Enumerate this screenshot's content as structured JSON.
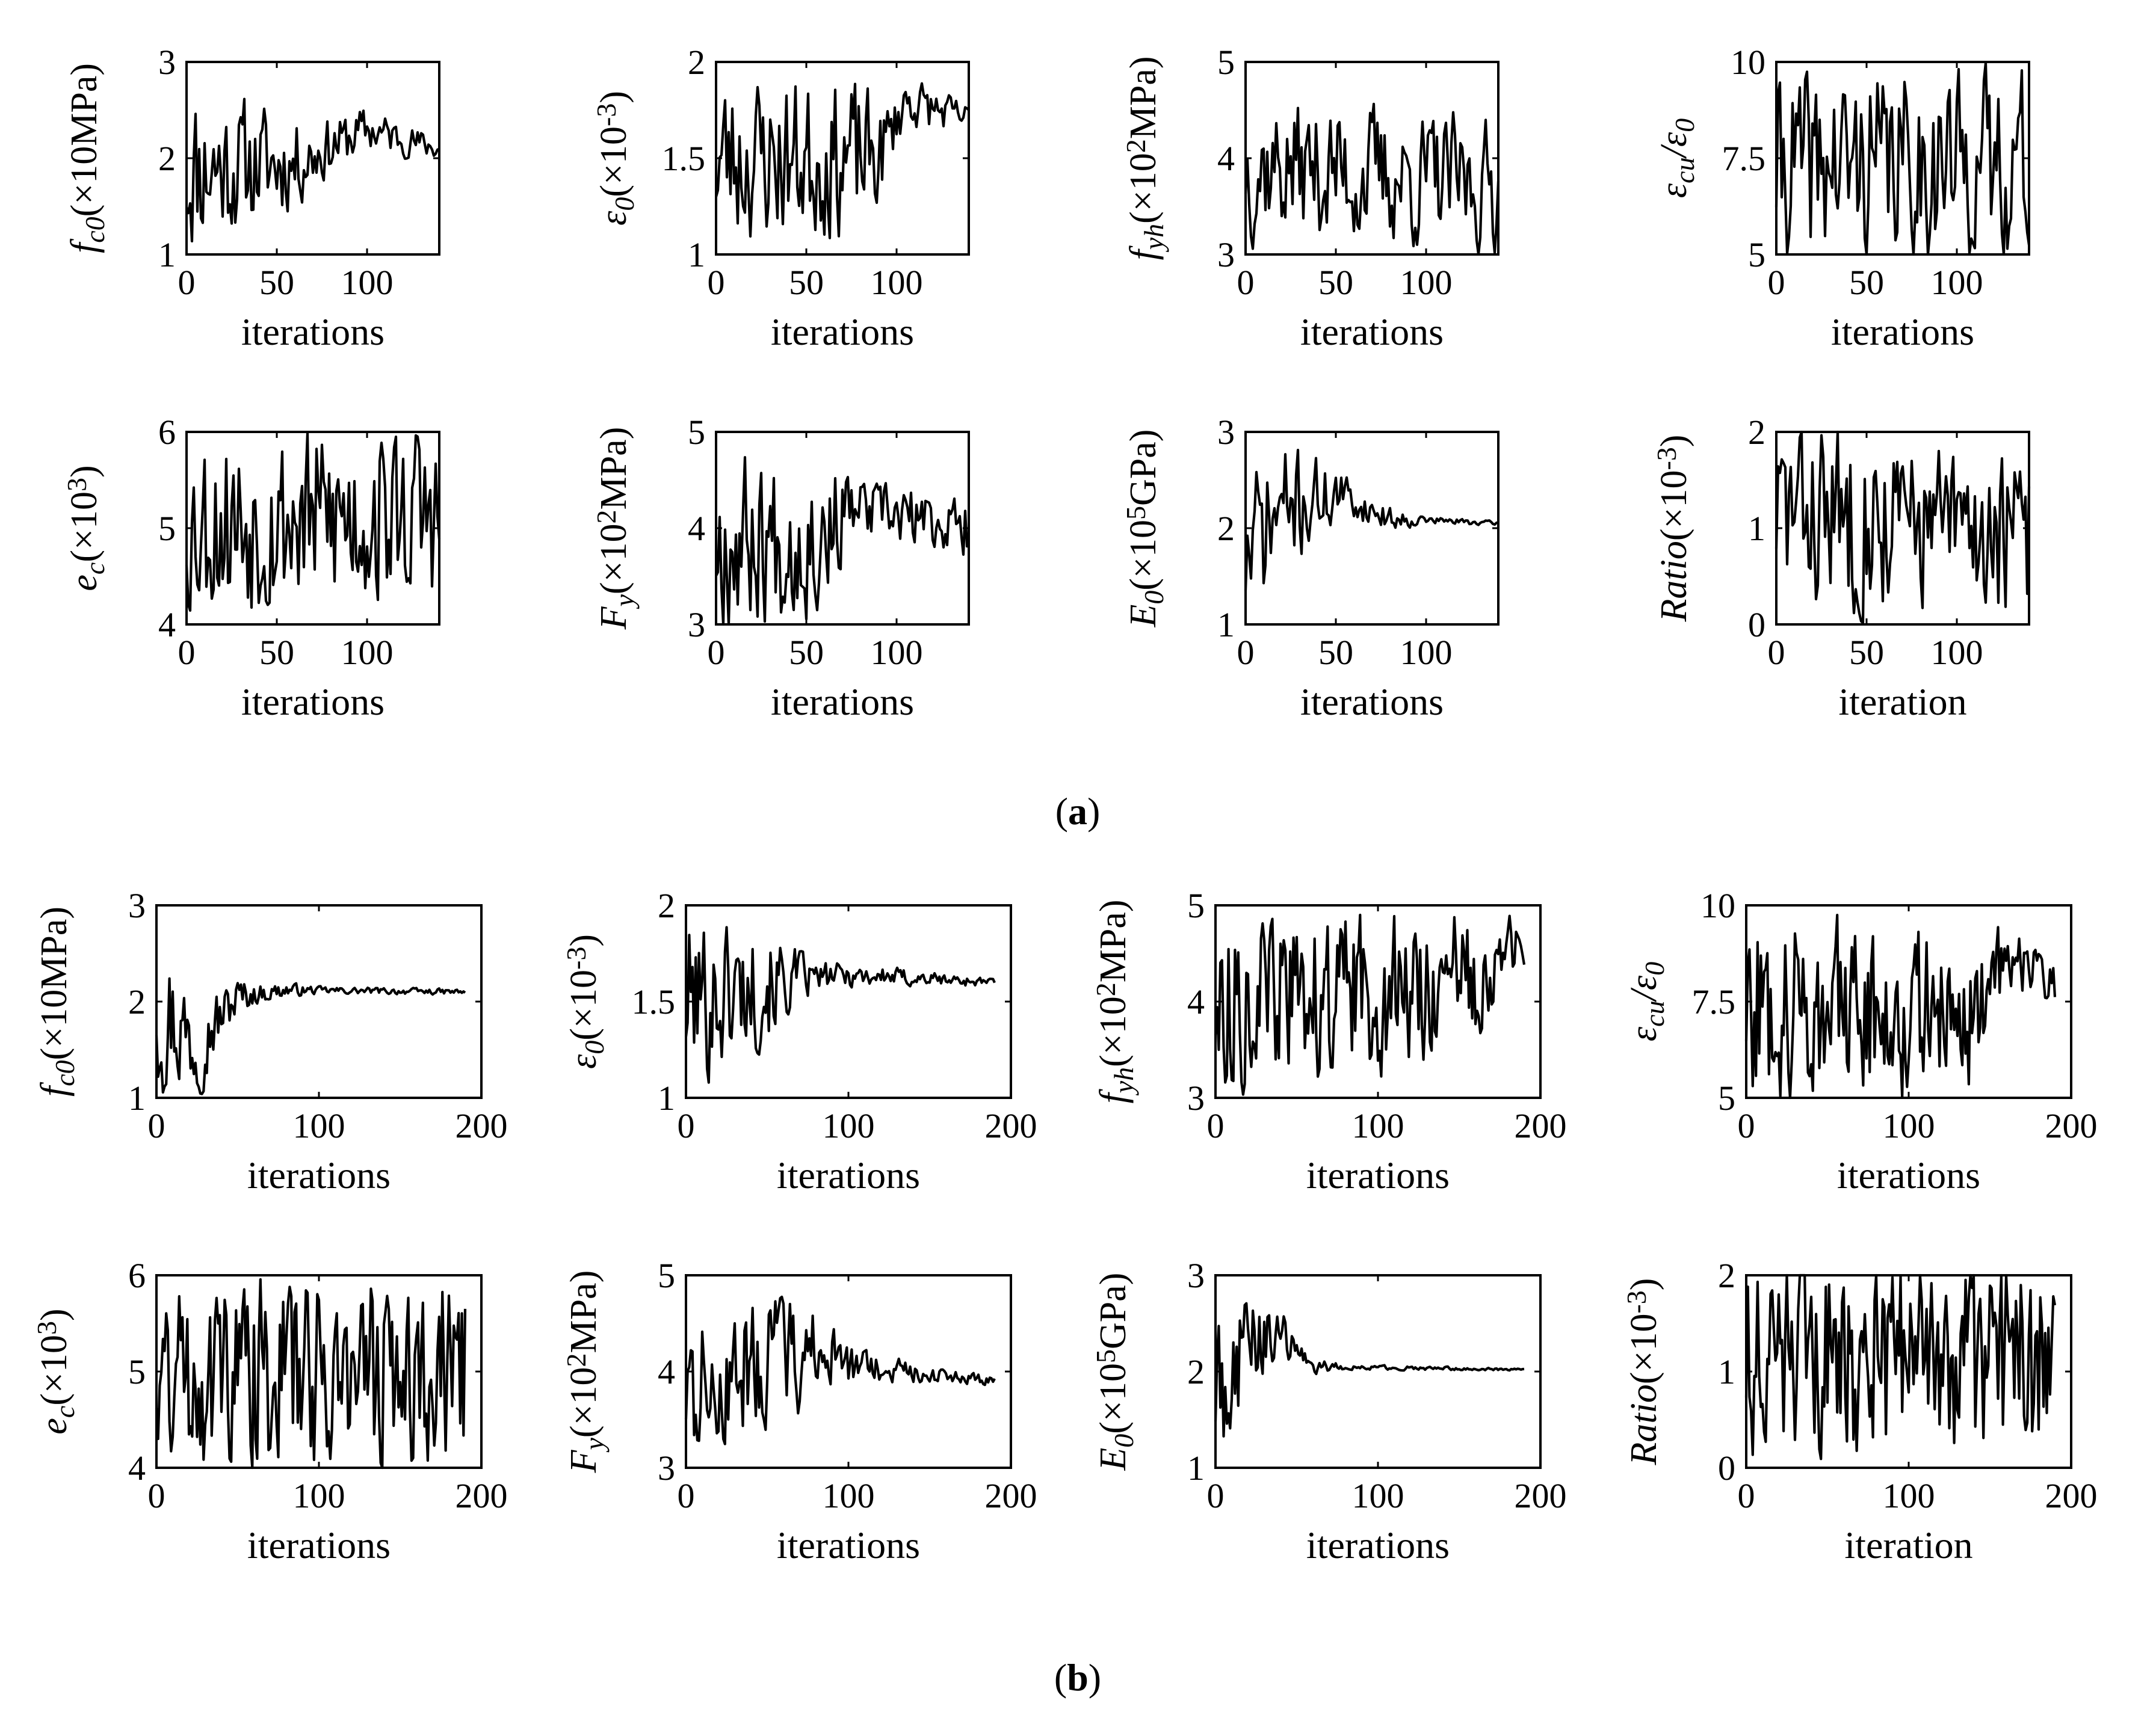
{
  "colors": {
    "line": "#000000",
    "axis": "#000000",
    "background": "#ffffff"
  },
  "panels": [
    {
      "label_open": "(",
      "label_letter": "a",
      "label_close": ")"
    },
    {
      "label_open": "(",
      "label_letter": "b",
      "label_close": ")"
    }
  ],
  "chart_data": [
    {
      "panel": "a",
      "type": "line",
      "ylabel_parts": [
        [
          "f",
          "i"
        ],
        [
          "c0",
          "isub"
        ],
        [
          "(×10MPa)",
          "n"
        ]
      ],
      "xlabel": "iterations",
      "xlim": [
        0,
        140
      ],
      "xticks": [
        0,
        50,
        100
      ],
      "ylim": [
        1,
        3
      ],
      "yticks": [
        1,
        2,
        3
      ],
      "ytick_labels": [
        "1",
        "2",
        "3"
      ],
      "n": 141,
      "seed": 11,
      "trend": [
        [
          0,
          1.9
        ],
        [
          60,
          1.95
        ],
        [
          100,
          2.3
        ],
        [
          140,
          2.1
        ]
      ],
      "amp": [
        [
          0,
          0.9
        ],
        [
          45,
          0.6
        ],
        [
          80,
          0.3
        ],
        [
          140,
          0.12
        ]
      ],
      "smooth": 0.3
    },
    {
      "panel": "a",
      "type": "line",
      "ylabel_parts": [
        [
          "ε",
          "i"
        ],
        [
          "0",
          "isub"
        ],
        [
          "(×10",
          "n"
        ],
        [
          "-3",
          "sup"
        ],
        [
          ")",
          "n"
        ]
      ],
      "xlabel": "iterations",
      "xlim": [
        0,
        140
      ],
      "xticks": [
        0,
        50,
        100
      ],
      "ylim": [
        1,
        2
      ],
      "yticks": [
        1,
        1.5,
        2
      ],
      "ytick_labels": [
        "1",
        "1.5",
        "2"
      ],
      "n": 141,
      "seed": 23,
      "trend": [
        [
          0,
          1.5
        ],
        [
          90,
          1.5
        ],
        [
          105,
          1.8
        ],
        [
          140,
          1.7
        ]
      ],
      "amp": [
        [
          0,
          0.45
        ],
        [
          80,
          0.4
        ],
        [
          100,
          0.15
        ],
        [
          140,
          0.08
        ]
      ],
      "smooth": 0.3
    },
    {
      "panel": "a",
      "type": "line",
      "ylabel_parts": [
        [
          "f",
          "i"
        ],
        [
          "yh",
          "isub"
        ],
        [
          "(×10",
          "n"
        ],
        [
          "2",
          "sup"
        ],
        [
          "MPa)",
          "n"
        ]
      ],
      "xlabel": "iterations",
      "xlim": [
        0,
        140
      ],
      "xticks": [
        0,
        50,
        100
      ],
      "ylim": [
        3,
        5
      ],
      "yticks": [
        3,
        4,
        5
      ],
      "ytick_labels": [
        "3",
        "4",
        "5"
      ],
      "n": 141,
      "seed": 37,
      "trend": [
        [
          0,
          3.95
        ],
        [
          140,
          3.7
        ]
      ],
      "amp": [
        [
          0,
          0.85
        ],
        [
          140,
          0.75
        ]
      ],
      "smooth": 0.4
    },
    {
      "panel": "a",
      "type": "line",
      "ylabel_parts": [
        [
          "ε",
          "i"
        ],
        [
          "cu",
          "isub"
        ],
        [
          "/ε",
          "i"
        ],
        [
          "0",
          "isub"
        ]
      ],
      "xlabel": "iterations",
      "xlim": [
        0,
        140
      ],
      "xticks": [
        0,
        50,
        100
      ],
      "ylim": [
        5,
        10
      ],
      "yticks": [
        5,
        7.5,
        10
      ],
      "ytick_labels": [
        "5",
        "7.5",
        "10"
      ],
      "n": 141,
      "seed": 41,
      "trend": [
        [
          0,
          7.3
        ],
        [
          140,
          7.4
        ]
      ],
      "amp": [
        [
          0,
          2.3
        ],
        [
          140,
          2.3
        ]
      ],
      "smooth": 0.25
    },
    {
      "panel": "a",
      "type": "line",
      "ylabel_parts": [
        [
          "e",
          "i"
        ],
        [
          "c",
          "isub"
        ],
        [
          "(×10",
          "n"
        ],
        [
          "3",
          "sup"
        ],
        [
          ")",
          "n"
        ]
      ],
      "xlabel": "iterations",
      "xlim": [
        0,
        140
      ],
      "xticks": [
        0,
        50,
        100
      ],
      "ylim": [
        4,
        6
      ],
      "yticks": [
        4,
        5,
        6
      ],
      "ytick_labels": [
        "4",
        "5",
        "6"
      ],
      "n": 141,
      "seed": 53,
      "trend": [
        [
          0,
          5.05
        ],
        [
          140,
          5.15
        ]
      ],
      "amp": [
        [
          0,
          0.95
        ],
        [
          140,
          0.9
        ]
      ],
      "smooth": 0.25
    },
    {
      "panel": "a",
      "type": "line",
      "ylabel_parts": [
        [
          "F",
          "i"
        ],
        [
          "y",
          "isub"
        ],
        [
          "(×10",
          "n"
        ],
        [
          "2",
          "sup"
        ],
        [
          "MPa)",
          "n"
        ]
      ],
      "xlabel": "iterations",
      "xlim": [
        0,
        140
      ],
      "xticks": [
        0,
        50,
        100
      ],
      "ylim": [
        3,
        5
      ],
      "yticks": [
        3,
        4,
        5
      ],
      "ytick_labels": [
        "3",
        "4",
        "5"
      ],
      "n": 141,
      "seed": 67,
      "trend": [
        [
          0,
          3.9
        ],
        [
          55,
          3.9
        ],
        [
          75,
          4.2
        ],
        [
          140,
          4.0
        ]
      ],
      "amp": [
        [
          0,
          0.95
        ],
        [
          60,
          0.8
        ],
        [
          75,
          0.35
        ],
        [
          140,
          0.3
        ]
      ],
      "smooth": 0.3
    },
    {
      "panel": "a",
      "type": "line",
      "ylabel_parts": [
        [
          "E",
          "i"
        ],
        [
          "0",
          "isub"
        ],
        [
          "(×10",
          "n"
        ],
        [
          "5",
          "sup"
        ],
        [
          "GPa)",
          "n"
        ]
      ],
      "xlabel": "iterations",
      "xlim": [
        0,
        140
      ],
      "xticks": [
        0,
        50,
        100
      ],
      "ylim": [
        1,
        3
      ],
      "yticks": [
        1,
        2,
        3
      ],
      "ytick_labels": [
        "1",
        "2",
        "3"
      ],
      "n": 141,
      "seed": 71,
      "trend": [
        [
          0,
          1.7
        ],
        [
          20,
          2.2
        ],
        [
          50,
          2.35
        ],
        [
          80,
          2.1
        ],
        [
          140,
          2.05
        ]
      ],
      "amp": [
        [
          0,
          0.9
        ],
        [
          30,
          0.6
        ],
        [
          60,
          0.2
        ],
        [
          100,
          0.05
        ],
        [
          140,
          0.02
        ]
      ],
      "smooth": 0.35
    },
    {
      "panel": "a",
      "type": "line",
      "ylabel_parts": [
        [
          "Ratio",
          "i"
        ],
        [
          "(×10",
          "n"
        ],
        [
          "-3",
          "sup"
        ],
        [
          ")",
          "n"
        ]
      ],
      "xlabel": "iteration",
      "xlim": [
        0,
        140
      ],
      "xticks": [
        0,
        50,
        100
      ],
      "ylim": [
        0,
        2
      ],
      "yticks": [
        0,
        1,
        2
      ],
      "ytick_labels": [
        "0",
        "1",
        "2"
      ],
      "n": 141,
      "seed": 83,
      "trend": [
        [
          0,
          1.2
        ],
        [
          140,
          0.9
        ]
      ],
      "amp": [
        [
          0,
          0.95
        ],
        [
          140,
          0.8
        ]
      ],
      "smooth": 0.25
    },
    {
      "panel": "b",
      "type": "line",
      "ylabel_parts": [
        [
          "f",
          "i"
        ],
        [
          "c0",
          "isub"
        ],
        [
          "(×10MPa)",
          "n"
        ]
      ],
      "xlabel": "iterations",
      "xlim": [
        0,
        200
      ],
      "xticks": [
        0,
        100,
        200
      ],
      "ylim": [
        1,
        3
      ],
      "yticks": [
        1,
        2,
        3
      ],
      "ytick_labels": [
        "1",
        "2",
        "3"
      ],
      "n": 191,
      "seed": 97,
      "trend": [
        [
          0,
          2.0
        ],
        [
          25,
          1.55
        ],
        [
          50,
          2.05
        ],
        [
          80,
          2.12
        ],
        [
          190,
          2.1
        ]
      ],
      "amp": [
        [
          0,
          0.95
        ],
        [
          30,
          0.45
        ],
        [
          60,
          0.12
        ],
        [
          100,
          0.04
        ],
        [
          190,
          0.03
        ]
      ],
      "smooth": 0.35
    },
    {
      "panel": "b",
      "type": "line",
      "ylabel_parts": [
        [
          "ε",
          "i"
        ],
        [
          "0",
          "isub"
        ],
        [
          "(×10",
          "n"
        ],
        [
          "-3",
          "sup"
        ],
        [
          ")",
          "n"
        ]
      ],
      "xlabel": "iterations",
      "xlim": [
        0,
        200
      ],
      "xticks": [
        0,
        100,
        200
      ],
      "ylim": [
        1,
        2
      ],
      "yticks": [
        1,
        1.5,
        2
      ],
      "ytick_labels": [
        "1",
        "1.5",
        "2"
      ],
      "n": 191,
      "seed": 101,
      "trend": [
        [
          0,
          1.5
        ],
        [
          50,
          1.6
        ],
        [
          100,
          1.64
        ],
        [
          190,
          1.6
        ]
      ],
      "amp": [
        [
          0,
          0.5
        ],
        [
          45,
          0.35
        ],
        [
          80,
          0.08
        ],
        [
          190,
          0.02
        ]
      ],
      "smooth": 0.35
    },
    {
      "panel": "b",
      "type": "line",
      "ylabel_parts": [
        [
          "f",
          "i"
        ],
        [
          "yh",
          "isub"
        ],
        [
          "(×10",
          "n"
        ],
        [
          "2",
          "sup"
        ],
        [
          "MPa)",
          "n"
        ]
      ],
      "xlabel": "iterations",
      "xlim": [
        0,
        200
      ],
      "xticks": [
        0,
        100,
        200
      ],
      "ylim": [
        3,
        5
      ],
      "yticks": [
        3,
        4,
        5
      ],
      "ytick_labels": [
        "3",
        "4",
        "5"
      ],
      "n": 191,
      "seed": 113,
      "trend": [
        [
          0,
          4.0
        ],
        [
          150,
          4.15
        ],
        [
          190,
          4.6
        ]
      ],
      "amp": [
        [
          0,
          0.9
        ],
        [
          150,
          0.75
        ],
        [
          190,
          0.3
        ]
      ],
      "smooth": 0.3
    },
    {
      "panel": "b",
      "type": "line",
      "ylabel_parts": [
        [
          "ε",
          "i"
        ],
        [
          "cu",
          "isub"
        ],
        [
          "/ε",
          "i"
        ],
        [
          "0",
          "isub"
        ]
      ],
      "xlabel": "iterations",
      "xlim": [
        0,
        200
      ],
      "xticks": [
        0,
        100,
        200
      ],
      "ylim": [
        5,
        10
      ],
      "yticks": [
        5,
        7.5,
        10
      ],
      "ytick_labels": [
        "5",
        "7.5",
        "10"
      ],
      "n": 191,
      "seed": 127,
      "trend": [
        [
          0,
          7.4
        ],
        [
          140,
          7.2
        ],
        [
          160,
          8.6
        ],
        [
          190,
          8.0
        ]
      ],
      "amp": [
        [
          0,
          2.3
        ],
        [
          140,
          2.0
        ],
        [
          160,
          0.8
        ],
        [
          190,
          0.5
        ]
      ],
      "smooth": 0.25
    },
    {
      "panel": "b",
      "type": "line",
      "ylabel_parts": [
        [
          "e",
          "i"
        ],
        [
          "c",
          "isub"
        ],
        [
          "(×10",
          "n"
        ],
        [
          "3",
          "sup"
        ],
        [
          ")",
          "n"
        ]
      ],
      "xlabel": "iterations",
      "xlim": [
        0,
        200
      ],
      "xticks": [
        0,
        100,
        200
      ],
      "ylim": [
        4,
        6
      ],
      "yticks": [
        4,
        5,
        6
      ],
      "ytick_labels": [
        "4",
        "5",
        "6"
      ],
      "n": 191,
      "seed": 131,
      "trend": [
        [
          0,
          5.0
        ],
        [
          190,
          5.0
        ]
      ],
      "amp": [
        [
          0,
          0.95
        ],
        [
          190,
          0.95
        ]
      ],
      "smooth": 0.25
    },
    {
      "panel": "b",
      "type": "line",
      "ylabel_parts": [
        [
          "F",
          "i"
        ],
        [
          "y",
          "isub"
        ],
        [
          "(×10",
          "n"
        ],
        [
          "2",
          "sup"
        ],
        [
          "MPa)",
          "n"
        ]
      ],
      "xlabel": "iterations",
      "xlim": [
        0,
        200
      ],
      "xticks": [
        0,
        100,
        200
      ],
      "ylim": [
        3,
        5
      ],
      "yticks": [
        3,
        4,
        5
      ],
      "ytick_labels": [
        "3",
        "4",
        "5"
      ],
      "n": 191,
      "seed": 137,
      "trend": [
        [
          0,
          3.8
        ],
        [
          60,
          4.2
        ],
        [
          110,
          4.05
        ],
        [
          190,
          3.9
        ]
      ],
      "amp": [
        [
          0,
          0.8
        ],
        [
          70,
          0.6
        ],
        [
          110,
          0.15
        ],
        [
          190,
          0.04
        ]
      ],
      "smooth": 0.3
    },
    {
      "panel": "b",
      "type": "line",
      "ylabel_parts": [
        [
          "E",
          "i"
        ],
        [
          "0",
          "isub"
        ],
        [
          "(×10",
          "n"
        ],
        [
          "5",
          "sup"
        ],
        [
          "GPa)",
          "n"
        ]
      ],
      "xlabel": "iterations",
      "xlim": [
        0,
        200
      ],
      "xticks": [
        0,
        100,
        200
      ],
      "ylim": [
        1,
        3
      ],
      "yticks": [
        1,
        2,
        3
      ],
      "ytick_labels": [
        "1",
        "2",
        "3"
      ],
      "n": 191,
      "seed": 149,
      "trend": [
        [
          0,
          1.8
        ],
        [
          20,
          2.3
        ],
        [
          40,
          2.4
        ],
        [
          60,
          2.05
        ],
        [
          190,
          2.02
        ]
      ],
      "amp": [
        [
          0,
          0.95
        ],
        [
          30,
          0.45
        ],
        [
          50,
          0.12
        ],
        [
          80,
          0.03
        ],
        [
          190,
          0.01
        ]
      ],
      "smooth": 0.35
    },
    {
      "panel": "b",
      "type": "line",
      "ylabel_parts": [
        [
          "Ratio",
          "i"
        ],
        [
          "(×10",
          "n"
        ],
        [
          "-3",
          "sup"
        ],
        [
          ")",
          "n"
        ]
      ],
      "xlabel": "iteration",
      "xlim": [
        0,
        200
      ],
      "xticks": [
        0,
        100,
        200
      ],
      "ylim": [
        0,
        2
      ],
      "yticks": [
        0,
        1,
        2
      ],
      "ytick_labels": [
        "0",
        "1",
        "2"
      ],
      "n": 191,
      "seed": 151,
      "trend": [
        [
          0,
          1.1
        ],
        [
          190,
          1.1
        ]
      ],
      "amp": [
        [
          0,
          0.9
        ],
        [
          190,
          0.9
        ]
      ],
      "smooth": 0.2
    }
  ]
}
